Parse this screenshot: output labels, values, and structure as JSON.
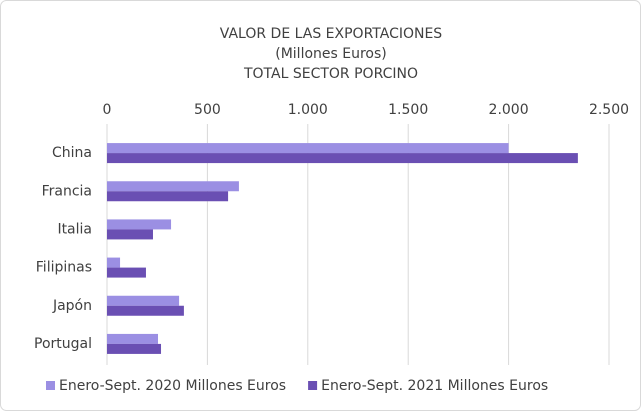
{
  "chart_data": {
    "type": "barh",
    "title": [
      "VALOR DE LAS EXPORTACIONES",
      "(Millones Euros)",
      "TOTAL SECTOR PORCINO"
    ],
    "categories": [
      "China",
      "Francia",
      "Italia",
      "Filipinas",
      "Japón",
      "Portugal"
    ],
    "series": [
      {
        "name": "Enero-Sept. 2020 Millones Euros",
        "color": "#9b8fe3",
        "values": [
          2000,
          657,
          319,
          65,
          359,
          254
        ]
      },
      {
        "name": "Enero-Sept. 2021 Millones Euros",
        "color": "#6a4fb3",
        "values": [
          2345,
          603,
          229,
          194,
          383,
          269
        ]
      }
    ],
    "xlim": [
      0,
      2500
    ],
    "xticks": [
      0,
      500,
      {
        "value": 1000,
        "label": "1.000"
      },
      {
        "value": 1500,
        "label": "1.500"
      },
      {
        "value": 2000,
        "label": "2.000"
      },
      {
        "value": 2500,
        "label": "2.500"
      }
    ],
    "grid": true,
    "legend": "bottom"
  }
}
